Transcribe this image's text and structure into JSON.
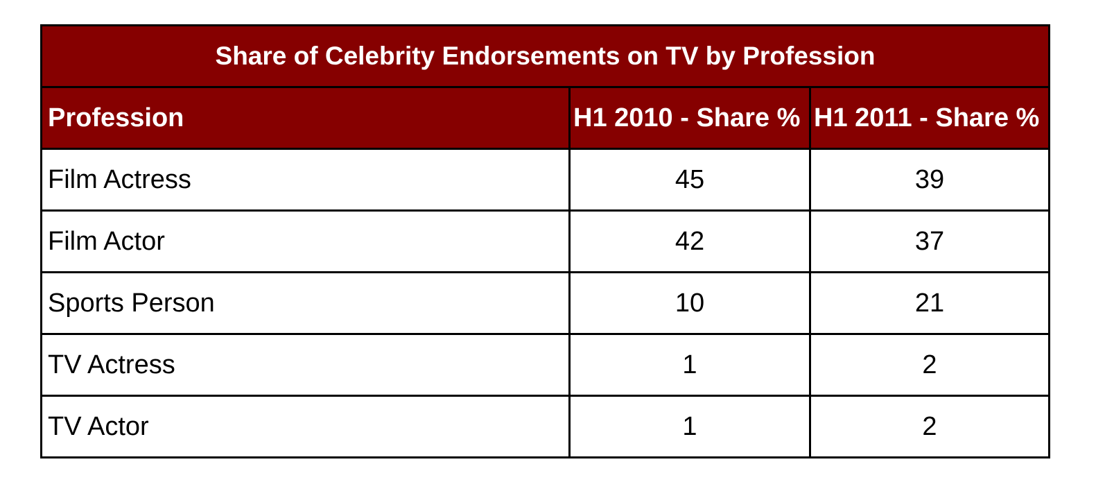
{
  "chart_data": {
    "type": "table",
    "title": "Share of Celebrity Endorsements on TV by Profession",
    "columns": [
      "Profession",
      "H1 2010 - Share %",
      "H1 2011 - Share %"
    ],
    "rows": [
      {
        "profession": "Film Actress",
        "h1_2010": "45",
        "h1_2011": "39"
      },
      {
        "profession": "Film Actor",
        "h1_2010": "42",
        "h1_2011": "37"
      },
      {
        "profession": "Sports Person",
        "h1_2010": "10",
        "h1_2011": "21"
      },
      {
        "profession": "TV Actress",
        "h1_2010": "1",
        "h1_2011": "2"
      },
      {
        "profession": "TV Actor",
        "h1_2010": "1",
        "h1_2011": "2"
      }
    ],
    "colors": {
      "header_background": "#860000",
      "header_text": "#ffffff",
      "border": "#000000"
    }
  }
}
